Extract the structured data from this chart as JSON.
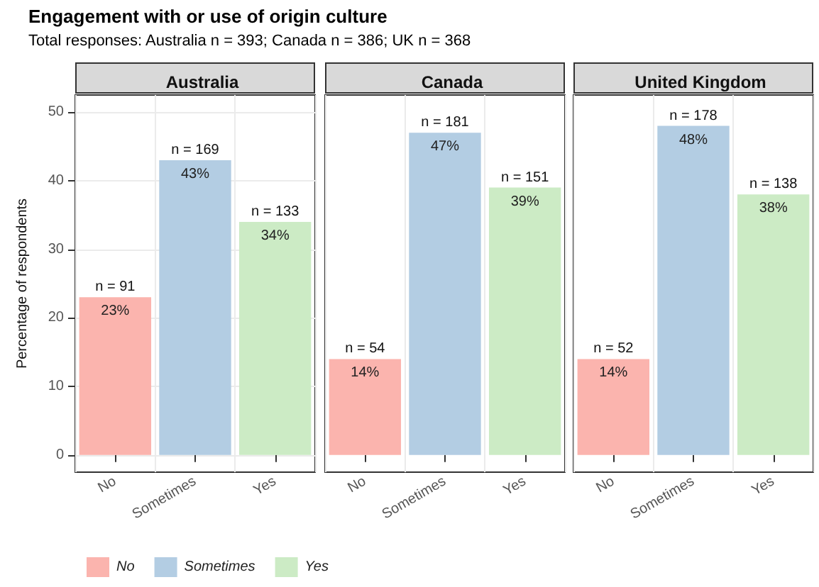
{
  "chart_data": [
    {
      "type": "bar",
      "title": "Australia",
      "ylabel": "Percentage of respondents",
      "annotations": [
        "Engagement with or use of origin culture",
        "Total responses: Australia n = 393; Canada n = 386; UK n = 368",
        {
          "text": "n = 91",
          "x": "No",
          "y": 23
        },
        {
          "text": "n = 169",
          "x": "Sometimes",
          "y": 43
        },
        {
          "text": "n = 133",
          "x": "Yes",
          "y": 34
        }
      ],
      "categories": [
        "No",
        "Sometimes",
        "Yes"
      ],
      "series": [
        {
          "name": "No",
          "color": "#fbb4ae",
          "values": [
            23,
            null,
            null
          ],
          "value_labels": [
            "23%",
            null,
            null
          ]
        },
        {
          "name": "Sometimes",
          "color": "#b3cde3",
          "values": [
            null,
            43,
            null
          ],
          "value_labels": [
            null,
            "43%",
            null
          ]
        },
        {
          "name": "Yes",
          "color": "#ccebc5",
          "values": [
            null,
            null,
            34
          ],
          "value_labels": [
            null,
            null,
            "34%"
          ]
        }
      ],
      "ylim": [
        -2.5,
        52.5
      ],
      "yticks": [
        0,
        10,
        20,
        30,
        40,
        50
      ],
      "grid": true,
      "legend": "bottom"
    },
    {
      "type": "bar",
      "title": "Canada",
      "annotations": [
        {
          "text": "n = 54",
          "x": "No",
          "y": 14
        },
        {
          "text": "n = 181",
          "x": "Sometimes",
          "y": 47
        },
        {
          "text": "n = 151",
          "x": "Yes",
          "y": 39
        }
      ],
      "categories": [
        "No",
        "Sometimes",
        "Yes"
      ],
      "series": [
        {
          "color": "#fbb4ae",
          "values": [
            14,
            null,
            null
          ],
          "value_labels": [
            "14%",
            null,
            null
          ]
        },
        {
          "color": "#b3cde3",
          "values": [
            null,
            47,
            null
          ],
          "value_labels": [
            null,
            "47%",
            null
          ]
        },
        {
          "color": "#ccebc5",
          "values": [
            null,
            null,
            39
          ],
          "value_labels": [
            null,
            null,
            "39%"
          ]
        }
      ],
      "ylim": [
        -2.5,
        52.5
      ],
      "grid": true,
      "tick_labels": "x"
    },
    {
      "type": "bar",
      "title": "United Kingdom",
      "annotations": [
        {
          "text": "n = 52",
          "x": "No",
          "y": 14
        },
        {
          "text": "n = 178",
          "x": "Sometimes",
          "y": 48
        },
        {
          "text": "n = 138",
          "x": "Yes",
          "y": 38
        }
      ],
      "categories": [
        "No",
        "Sometimes",
        "Yes"
      ],
      "series": [
        {
          "color": "#fbb4ae",
          "values": [
            14,
            null,
            null
          ],
          "value_labels": [
            "14%",
            null,
            null
          ]
        },
        {
          "color": "#b3cde3",
          "values": [
            null,
            48,
            null
          ],
          "value_labels": [
            null,
            "48%",
            null
          ]
        },
        {
          "color": "#ccebc5",
          "values": [
            null,
            null,
            38
          ],
          "value_labels": [
            null,
            null,
            "38%"
          ]
        }
      ],
      "ylim": [
        -2.5,
        52.5
      ],
      "grid": true,
      "tick_labels": "x"
    }
  ]
}
